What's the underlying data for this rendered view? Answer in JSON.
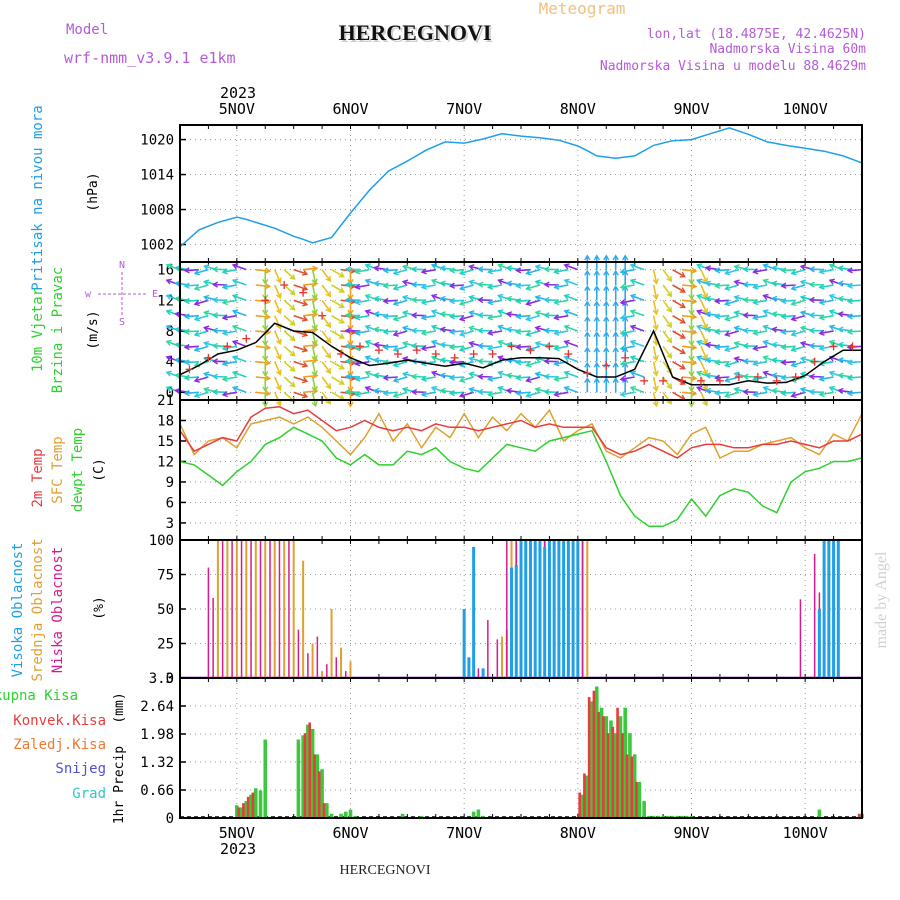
{
  "header": {
    "model_label": "Model",
    "model_name": "wrf-nmm_v3.9.1 e1km",
    "location": "HERCEGNOVI",
    "product": "Meteogram",
    "lonlat": "lon,lat (18.4875E, 42.4625N)",
    "elevation": "Nadmorska Visina 60m",
    "model_elevation": "Nadmorska Visina u modelu 88.4629m",
    "footer_location": "HERCEGNOVI",
    "watermark": "made by Angel"
  },
  "colors": {
    "pressure": "#1f9fe8",
    "wind_speed": "#000000",
    "wind_gust": "#e83030",
    "temp_2m": "#e83c3c",
    "temp_sfc": "#e0a030",
    "dewpoint": "#2ed12e",
    "cloud_high": "#1f9fe8",
    "cloud_mid": "#e0a030",
    "cloud_low": "#d81b8c",
    "precip_total": "#3cc83c",
    "precip_conv": "#e83c3c",
    "precip_frozen": "#f07830",
    "snow": "#5050d8",
    "hail": "#30c8c8",
    "purple_text": "#b45ad8",
    "orange_text": "#f0c080"
  },
  "chart_data": [
    {
      "type": "line",
      "id": "pressure",
      "ylabel": "Pritisak na nivou mora",
      "unit": "(hPa)",
      "yticks": [
        "1002",
        "1008",
        "1014",
        "1020"
      ],
      "ylim": [
        999,
        1022.5
      ],
      "xlim": [
        0,
        144
      ],
      "x_top_year": "2023",
      "x_bottom_year": "2023",
      "x_labels": [
        "5NOV",
        "6NOV",
        "7NOV",
        "8NOV",
        "9NOV",
        "10NOV"
      ],
      "x_label_hours": [
        12,
        36,
        60,
        84,
        108,
        132
      ],
      "grid": true,
      "x": [
        0,
        4,
        8,
        12,
        14,
        16,
        20,
        24,
        26,
        28,
        32,
        36,
        40,
        44,
        48,
        52,
        56,
        60,
        64,
        68,
        72,
        76,
        80,
        84,
        86,
        88,
        92,
        96,
        100,
        104,
        106,
        108,
        112,
        116,
        120,
        124,
        128,
        132,
        136,
        140,
        144
      ],
      "values": [
        1001.6,
        1004.5,
        1005.8,
        1006.7,
        1006.3,
        1005.8,
        1004.8,
        1003.4,
        1002.9,
        1002.3,
        1003.2,
        1007.4,
        1011.3,
        1014.6,
        1016.3,
        1018.2,
        1019.6,
        1019.4,
        1020.1,
        1021.0,
        1020.6,
        1020.3,
        1019.9,
        1018.9,
        1018.1,
        1017.2,
        1016.8,
        1017.2,
        1019.0,
        1019.8,
        1019.9,
        1020.0,
        1021.0,
        1022.0,
        1020.9,
        1019.6,
        1019.0,
        1018.5,
        1018.0,
        1017.2,
        1016.0
      ]
    },
    {
      "type": "vector-field",
      "id": "wind",
      "ylabel_1": "10m Vjetar",
      "ylabel_2": "Brzina i Pravac",
      "unit": "(m/s)",
      "yticks": [
        "0",
        "4",
        "8",
        "12",
        "16"
      ],
      "ylim": [
        -1,
        17
      ],
      "compass_labels": [
        "N",
        "w",
        "E",
        "S"
      ],
      "series": [
        {
          "name": "speed",
          "x": [
            0,
            4,
            8,
            12,
            16,
            20,
            24,
            28,
            32,
            36,
            40,
            44,
            48,
            52,
            56,
            60,
            64,
            68,
            72,
            76,
            80,
            84,
            88,
            92,
            96,
            100,
            104,
            108,
            112,
            116,
            120,
            124,
            128,
            132,
            136,
            140,
            144
          ],
          "values": [
            2.3,
            3.5,
            5.0,
            5.5,
            6.5,
            9.0,
            8.0,
            7.8,
            6.0,
            4.5,
            3.5,
            3.8,
            4.2,
            3.8,
            3.4,
            3.8,
            3.2,
            4.2,
            4.5,
            4.5,
            4.4,
            3.0,
            2.0,
            2.0,
            3.0,
            8.0,
            2.0,
            1.0,
            1.0,
            1.0,
            1.5,
            1.2,
            1.3,
            2.2,
            4.0,
            5.5,
            5.5
          ]
        },
        {
          "name": "gust",
          "x": [
            2,
            6,
            10,
            14,
            18,
            22,
            26,
            30,
            34,
            38,
            42,
            46,
            50,
            54,
            58,
            62,
            66,
            70,
            74,
            78,
            82,
            86,
            90,
            94,
            98,
            102,
            106,
            110,
            114,
            118,
            122,
            126,
            130,
            134,
            138,
            142
          ],
          "values": [
            3.0,
            4.5,
            6.0,
            7.0,
            12.0,
            14.0,
            13.0,
            10.0,
            5.0,
            6.0,
            5.5,
            5.0,
            5.5,
            5.0,
            4.5,
            5.0,
            5.0,
            6.0,
            5.5,
            6.0,
            5.0,
            2.5,
            3.5,
            4.5,
            1.5,
            1.5,
            1.5,
            1.5,
            1.5,
            2.0,
            2.0,
            1.5,
            2.0,
            4.0,
            6.0,
            6.0
          ]
        }
      ]
    },
    {
      "type": "line",
      "id": "temperature",
      "ylabel_1": "2m Temp",
      "ylabel_2": "SFC Temp",
      "ylabel_3": "dewpt Temp",
      "unit": "(C)",
      "yticks": [
        "3",
        "6",
        "9",
        "12",
        "15",
        "18",
        "21"
      ],
      "ylim": [
        0.5,
        21
      ],
      "x": [
        0,
        3,
        6,
        9,
        12,
        15,
        18,
        21,
        24,
        27,
        30,
        33,
        36,
        39,
        42,
        45,
        48,
        51,
        54,
        57,
        60,
        63,
        66,
        69,
        72,
        75,
        78,
        81,
        84,
        87,
        90,
        93,
        96,
        99,
        102,
        105,
        108,
        111,
        114,
        117,
        120,
        123,
        126,
        129,
        132,
        135,
        138,
        141,
        144
      ],
      "series": [
        {
          "name": "2m Temp",
          "values": [
            16.5,
            13.5,
            14.5,
            15.5,
            15.0,
            18.5,
            19.8,
            20.0,
            19.0,
            19.5,
            18.0,
            16.5,
            17.0,
            18.0,
            17.0,
            16.5,
            17.0,
            16.5,
            17.5,
            17.0,
            17.0,
            16.5,
            17.0,
            17.5,
            18.0,
            17.0,
            17.5,
            17.0,
            17.0,
            17.0,
            14.0,
            13.0,
            13.5,
            14.5,
            13.5,
            12.5,
            14.0,
            14.5,
            14.5,
            14.0,
            14.0,
            14.5,
            14.5,
            15.0,
            14.5,
            14.0,
            15.0,
            15.0,
            16.0
          ]
        },
        {
          "name": "SFC Temp",
          "values": [
            17.5,
            13.0,
            15.0,
            15.5,
            14.0,
            17.5,
            18.0,
            18.5,
            17.5,
            18.5,
            17.0,
            15.0,
            13.0,
            15.5,
            19.0,
            15.0,
            17.5,
            14.0,
            17.0,
            15.5,
            19.0,
            15.5,
            18.5,
            16.5,
            19.0,
            17.0,
            19.5,
            15.0,
            16.5,
            17.5,
            13.5,
            12.5,
            14.0,
            15.5,
            15.0,
            13.0,
            16.0,
            17.0,
            12.5,
            13.5,
            13.5,
            14.5,
            15.0,
            15.5,
            14.0,
            13.0,
            16.0,
            15.0,
            19.0
          ]
        },
        {
          "name": "dewpt Temp",
          "values": [
            12.0,
            11.5,
            10.0,
            8.5,
            10.5,
            12.0,
            14.5,
            15.5,
            17.0,
            16.0,
            15.0,
            12.5,
            11.5,
            13.0,
            11.5,
            11.5,
            13.5,
            13.0,
            14.0,
            12.0,
            11.0,
            10.5,
            12.5,
            14.5,
            14.0,
            13.5,
            15.0,
            15.5,
            16.0,
            16.5,
            12.0,
            7.0,
            4.0,
            2.5,
            2.5,
            3.5,
            6.5,
            4.0,
            7.0,
            8.0,
            7.5,
            5.5,
            4.5,
            9.0,
            10.5,
            11.0,
            12.0,
            12.0,
            12.5
          ]
        }
      ]
    },
    {
      "type": "bar",
      "id": "clouds",
      "ylabel_1": "Visoka Oblacnost",
      "ylabel_2": "Srednja Oblacnost",
      "ylabel_3": "Niska Oblacnost",
      "unit": "(%)",
      "yticks": [
        "0",
        "25",
        "50",
        "75",
        "100"
      ],
      "ylim": [
        0,
        100
      ],
      "series": [
        {
          "name": "Visoka Oblacnost",
          "x": [
            60,
            61,
            62,
            64,
            70,
            71,
            72,
            73,
            74,
            75,
            76,
            77,
            78,
            79,
            80,
            81,
            82,
            83,
            84,
            135,
            136,
            137,
            138,
            139
          ],
          "values": [
            50,
            15,
            95,
            7,
            80,
            82,
            100,
            100,
            100,
            100,
            100,
            95,
            100,
            100,
            100,
            100,
            100,
            100,
            100,
            50,
            100,
            100,
            100,
            100
          ]
        },
        {
          "name": "Srednja Oblacnost",
          "x": [
            8,
            10,
            12,
            14,
            16,
            18,
            20,
            22,
            24,
            26,
            28,
            30,
            32,
            34,
            36,
            68,
            69,
            70,
            71,
            72,
            73,
            74,
            75,
            76,
            77,
            78,
            79,
            80,
            81,
            82,
            83,
            84,
            85,
            86
          ],
          "values": [
            100,
            100,
            100,
            100,
            100,
            100,
            100,
            100,
            100,
            85,
            25,
            5,
            50,
            22,
            12,
            30,
            35,
            100,
            100,
            100,
            100,
            100,
            100,
            100,
            100,
            100,
            100,
            100,
            100,
            100,
            100,
            100,
            100,
            100
          ]
        },
        {
          "name": "Niska Oblacnost",
          "x": [
            6,
            7,
            9,
            11,
            13,
            15,
            17,
            19,
            21,
            23,
            25,
            27,
            29,
            31,
            33,
            35,
            63,
            65,
            67,
            69,
            71,
            73,
            75,
            77,
            79,
            81,
            83,
            85,
            131,
            134,
            135
          ],
          "values": [
            80,
            58,
            100,
            100,
            100,
            100,
            100,
            100,
            100,
            100,
            35,
            18,
            30,
            10,
            15,
            5,
            7,
            42,
            28,
            100,
            100,
            100,
            100,
            100,
            100,
            100,
            100,
            100,
            57,
            90,
            62
          ]
        }
      ]
    },
    {
      "type": "bar",
      "id": "precip",
      "ylabel": "1hr Precip",
      "unit": "(mm)",
      "yticks": [
        "0",
        "0.66",
        "1.32",
        "1.98",
        "2.64",
        "3.3"
      ],
      "ylim": [
        0,
        3.3
      ],
      "legend": [
        "Ukupna Kisa",
        "Konvek.Kisa",
        "Zaledj.Kisa",
        "Snijeg",
        "Grad"
      ],
      "series": [
        {
          "name": "Ukupna Kisa",
          "x": [
            12,
            13,
            14,
            15,
            16,
            17,
            18,
            25,
            26,
            27,
            28,
            29,
            30,
            31,
            32,
            34,
            35,
            36,
            37,
            47,
            51,
            62,
            63,
            64,
            85,
            86,
            87,
            88,
            89,
            90,
            91,
            92,
            93,
            94,
            95,
            96,
            97,
            98,
            99,
            100,
            101,
            102,
            103,
            104,
            105,
            106,
            107,
            108,
            135,
            144
          ],
          "values": [
            0.3,
            0.25,
            0.4,
            0.55,
            0.7,
            0.65,
            1.85,
            1.85,
            1.95,
            2.2,
            2.1,
            1.5,
            1.15,
            0.35,
            0.1,
            0.1,
            0.15,
            0.2,
            0.05,
            0.1,
            0.05,
            0.15,
            0.2,
            0.05,
            0.55,
            1.0,
            2.75,
            3.1,
            2.6,
            2.4,
            2.3,
            2.0,
            2.4,
            2.6,
            2.0,
            1.5,
            0.85,
            0.4,
            0.05,
            0.05,
            0.05,
            0.05,
            0.05,
            0.05,
            0.05,
            0.05,
            0.05,
            0.05,
            0.2,
            0.1
          ]
        },
        {
          "name": "Konvek.Kisa",
          "x": [
            13,
            14,
            15,
            16,
            27,
            28,
            29,
            30,
            31,
            85,
            86,
            87,
            88,
            89,
            90,
            91,
            92,
            93,
            94,
            95,
            96,
            97,
            144
          ],
          "values": [
            0.25,
            0.35,
            0.5,
            0.6,
            2.0,
            2.25,
            1.5,
            1.1,
            0.35,
            0.6,
            1.05,
            2.85,
            3.0,
            2.5,
            2.4,
            2.0,
            2.15,
            2.6,
            2.0,
            1.5,
            1.45,
            0.85,
            0.1
          ]
        }
      ]
    }
  ]
}
